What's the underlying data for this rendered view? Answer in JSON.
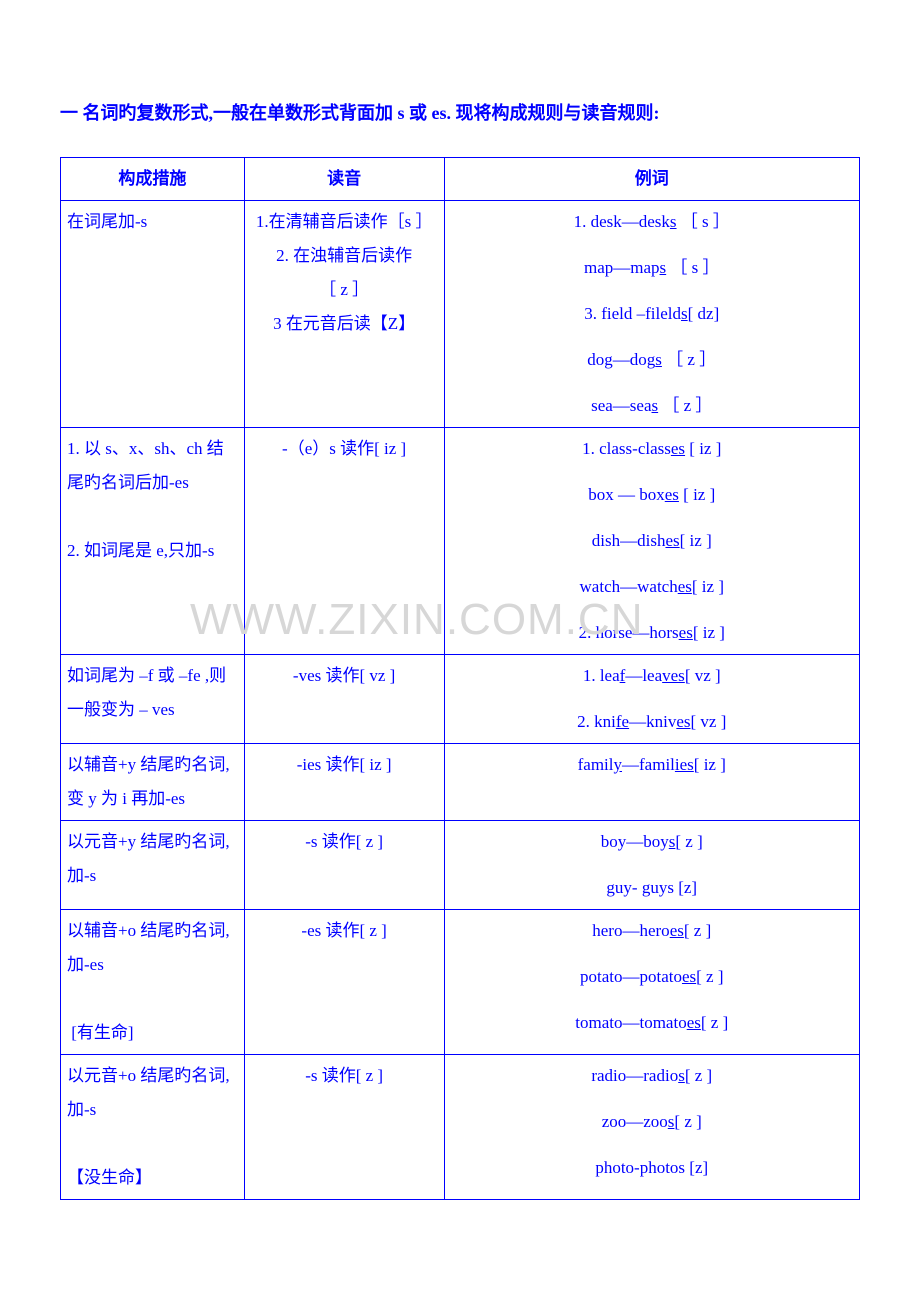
{
  "heading": "一 名词旳复数形式,一般在单数形式背面加 s 或 es. 现将构成规则与读音规则:",
  "watermark": "WWW.ZIXIN.COM.CN",
  "header": {
    "c1": "构成措施",
    "c2": "读音",
    "c3": "例词"
  },
  "rows": [
    {
      "c1": "在词尾加-s",
      "c2": "1.在清辅音后读作［s ］\n2. 在浊辅音后读作\n［ z ］\n3 在元音后读【Z】",
      "c3": [
        {
          "pre": "1. desk—desk",
          "u": "s",
          "post": " ［ s ］"
        },
        {
          "pre": "map—map",
          "u": "s",
          "post": " ［ s ］"
        },
        {
          "pre": "3. field –fileld",
          "u": "s",
          "post": "[ dz]"
        },
        {
          "pre": "dog—dog",
          "u": "s",
          "post": " ［ z ］"
        },
        {
          "pre": "sea—sea",
          "u": "s",
          "post": " ［ z ］"
        }
      ]
    },
    {
      "c1": "1. 以 s、x、sh、ch 结尾旳名词后加-es\n\n2. 如词尾是 e,只加-s",
      "c2": "-（e）s 读作[ iz ]",
      "c3": [
        {
          "pre": "1. class-class",
          "u": "es",
          "post": " [ iz ]"
        },
        {
          "pre": "box — box",
          "u": "es",
          "post": " [ iz ]"
        },
        {
          "pre": "dish—dish",
          "u": "es",
          "post": "[ iz ]"
        },
        {
          "pre": "watch—watch",
          "u": "es",
          "post": "[ iz ]"
        },
        {
          "pre": "2. horse—hors",
          "u": "es",
          "post": "[ iz ]"
        }
      ]
    },
    {
      "c1": "如词尾为 –f 或 –fe ,则一般变为 – ves",
      "c2": "-ves 读作[ vz ]",
      "c3": [
        {
          "pre": "1. lea",
          "u": "f",
          "post": "—lea",
          "u2": "ves",
          "post2": "[ vz ]"
        },
        {
          "pre": "2. kni",
          "u": "fe",
          "post": "—kniv",
          "u2": "es",
          "post2": "[ vz ]"
        }
      ]
    },
    {
      "c1": "以辅音+y 结尾旳名词, 变 y 为 i 再加-es",
      "c2": "-ies 读作[ iz ]",
      "c3": [
        {
          "pre": "famil",
          "u": "y",
          "post": "—famil",
          "u2": "ies",
          "post2": "[ iz ]"
        }
      ]
    },
    {
      "c1": "以元音+y 结尾旳名词, 加-s",
      "c2": "-s 读作[ z ]",
      "c3": [
        {
          "pre": "boy—boy",
          "u": "s",
          "post": "[ z ]"
        },
        {
          "pre": "guy- guys [z]"
        }
      ]
    },
    {
      "c1": "以辅音+o 结尾旳名词,  加-es\n\n [有生命]",
      "c2": "-es 读作[ z ]",
      "c3": [
        {
          "pre": "hero—hero",
          "u": "es",
          "post": "[ z ]"
        },
        {
          "pre": "potato—potato",
          "u": "es",
          "post": "[ z ]"
        },
        {
          "pre": "tomato—tomato",
          "u": "es",
          "post": "[ z ]"
        }
      ]
    },
    {
      "c1": "以元音+o 结尾旳名词,  加-s\n\n【没生命】",
      "c2": "-s 读作[ z ]",
      "c3": [
        {
          "pre": "radio—radio",
          "u": "s",
          "post": "[ z ]"
        },
        {
          "pre": "zoo—zoo",
          "u": "s",
          "post": "[ z ]"
        },
        {
          "pre": "photo-photos [z]"
        }
      ]
    }
  ]
}
